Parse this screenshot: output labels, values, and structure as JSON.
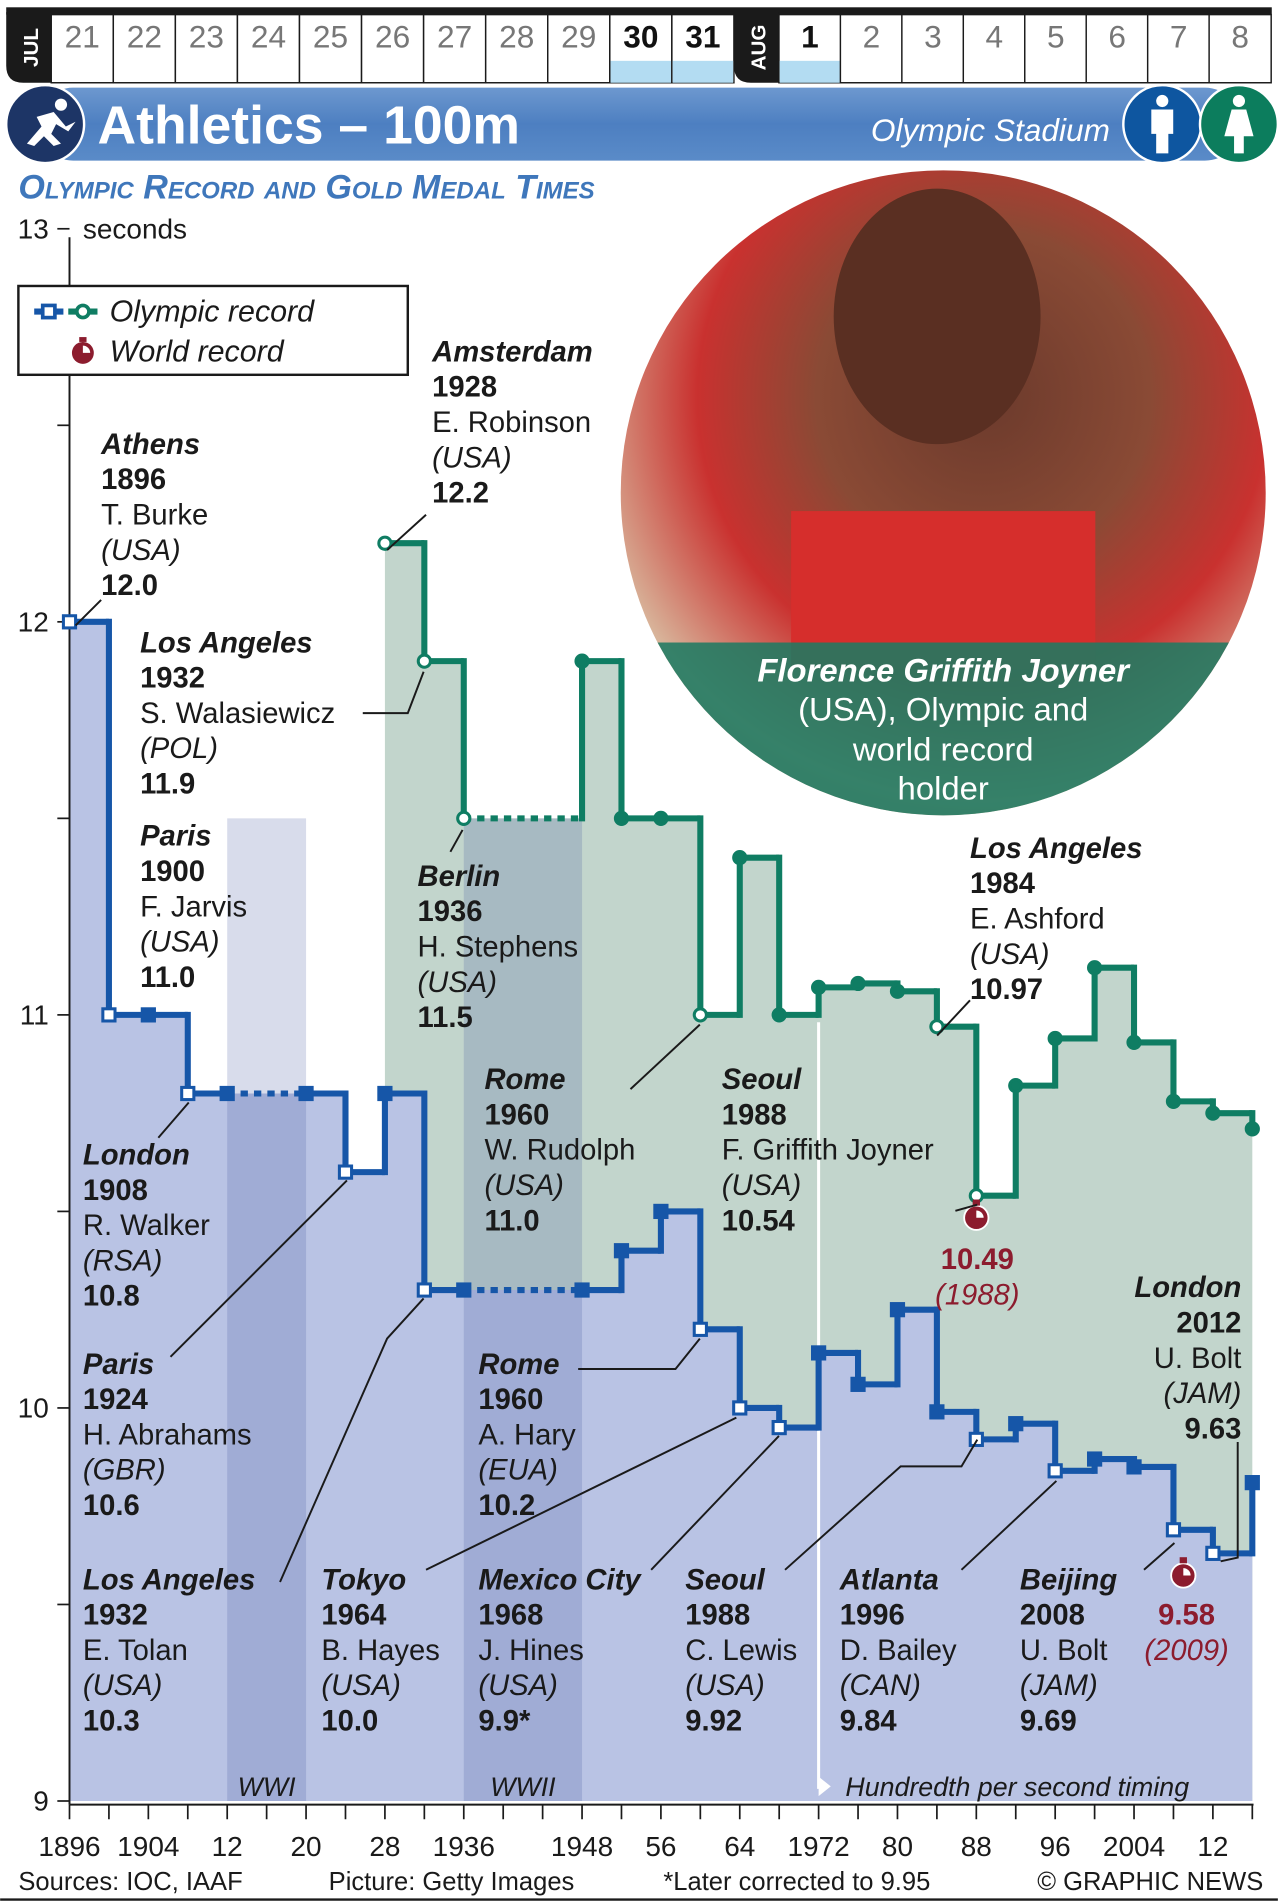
{
  "calendar": {
    "month1": "JUL",
    "month1_days": [
      "21",
      "22",
      "23",
      "24",
      "25",
      "26",
      "27",
      "28",
      "29",
      "30",
      "31"
    ],
    "month2": "AUG",
    "month2_days": [
      "1",
      "2",
      "3",
      "4",
      "5",
      "6",
      "7",
      "8"
    ],
    "highlighted_days": [
      "30",
      "31",
      "1"
    ],
    "highlight_color": "#b3dcf2"
  },
  "header": {
    "title": "Athletics – 100m",
    "venue": "Olympic Stadium",
    "sport_icon": "sprinter-icon",
    "men_icon": "man-icon",
    "women_icon": "woman-icon"
  },
  "subtitle": "Olympic Record and Gold Medal Times",
  "legend": {
    "olympic_record": "Olympic record",
    "world_record": "World record"
  },
  "photo": {
    "caption_name": "Florence Griffith Joyner",
    "caption_lines": [
      "(USA), Olympic and",
      "world record",
      "holder"
    ]
  },
  "bands": {
    "wwi": "WWI",
    "wwii": "WWII",
    "timing": "Hundredth per second timing"
  },
  "footer": {
    "sources": "Sources: IOC, IAAF",
    "picture": "Picture: Getty Images",
    "note": "*Later corrected to 9.95",
    "credit": "© GRAPHIC NEWS"
  },
  "chart_data": {
    "type": "line",
    "step": true,
    "ylabel": "seconds",
    "ylim": [
      9,
      13
    ],
    "yticks": [
      "13",
      "12",
      "11",
      "10",
      "9"
    ],
    "xlim": [
      1896,
      2016
    ],
    "xtick_labels": [
      "1896",
      "1904",
      "12",
      "20",
      "28",
      "1936",
      "1948",
      "56",
      "64",
      "1972",
      "80",
      "88",
      "96",
      "2004",
      "12"
    ],
    "colors": {
      "men_line": "#1656a8",
      "men_fill": "#b9c3e4",
      "women_line": "#0f7d63",
      "women_fill": "#c2d5cc",
      "world_record": "#8c1c2e"
    },
    "series": [
      {
        "key": "men",
        "x": [
          1896,
          1900,
          1904,
          1908,
          1912,
          1920,
          1924,
          1928,
          1932,
          1936,
          1948,
          1952,
          1956,
          1960,
          1964,
          1968,
          1972,
          1976,
          1980,
          1984,
          1988,
          1992,
          1996,
          2000,
          2004,
          2008,
          2012,
          2016
        ],
        "y": [
          12.0,
          11.0,
          11.0,
          10.8,
          10.8,
          10.8,
          10.6,
          10.8,
          10.3,
          10.3,
          10.3,
          10.4,
          10.5,
          10.2,
          10.0,
          9.95,
          10.14,
          10.06,
          10.25,
          9.99,
          9.92,
          9.96,
          9.84,
          9.87,
          9.85,
          9.69,
          9.63,
          9.81
        ],
        "olympic_record": [
          1896,
          1900,
          1908,
          1924,
          1932,
          1960,
          1964,
          1968,
          1988,
          1996,
          2008,
          2012
        ]
      },
      {
        "key": "women",
        "x": [
          1928,
          1932,
          1936,
          1948,
          1952,
          1956,
          1960,
          1964,
          1968,
          1972,
          1976,
          1980,
          1984,
          1988,
          1992,
          1996,
          2000,
          2004,
          2008,
          2012,
          2016
        ],
        "y": [
          12.2,
          11.9,
          11.5,
          11.9,
          11.5,
          11.5,
          11.0,
          11.4,
          11.0,
          11.07,
          11.08,
          11.06,
          10.97,
          10.54,
          10.82,
          10.94,
          11.12,
          10.93,
          10.78,
          10.75,
          10.71
        ],
        "olympic_record": [
          1928,
          1932,
          1936,
          1960,
          1984,
          1988
        ]
      }
    ],
    "world_records": [
      {
        "x": 1988,
        "y": 10.49,
        "label": "10.49",
        "year": "(1988)"
      },
      {
        "x": 2009,
        "y": 9.58,
        "label": "9.58",
        "year": "(2009)"
      }
    ],
    "shaded_periods": [
      {
        "label": "WWI",
        "from": 1912,
        "to": 1920
      },
      {
        "label": "WWII",
        "from": 1936,
        "to": 1948
      }
    ],
    "timing_change_year": 1972,
    "annotations": [
      {
        "city": "Athens",
        "year": "1896",
        "name": "T. Burke",
        "country": "(USA)",
        "time": "12.0"
      },
      {
        "city": "Amsterdam",
        "year": "1928",
        "name": "E. Robinson",
        "country": "(USA)",
        "time": "12.2"
      },
      {
        "city": "Los Angeles",
        "year": "1932",
        "name": "S. Walasiewicz",
        "country": "(POL)",
        "time": "11.9"
      },
      {
        "city": "Paris",
        "year": "1900",
        "name": "F. Jarvis",
        "country": "(USA)",
        "time": "11.0"
      },
      {
        "city": "Berlin",
        "year": "1936",
        "name": "H. Stephens",
        "country": "(USA)",
        "time": "11.5"
      },
      {
        "city": "London",
        "year": "1908",
        "name": "R. Walker",
        "country": "(RSA)",
        "time": "10.8"
      },
      {
        "city": "Rome",
        "year": "1960",
        "name": "W. Rudolph",
        "country": "(USA)",
        "time": "11.0"
      },
      {
        "city": "Seoul",
        "year": "1988",
        "name": "F. Griffith Joyner",
        "country": "(USA)",
        "time": "10.54"
      },
      {
        "city": "Los Angeles",
        "year": "1984",
        "name": "E. Ashford",
        "country": "(USA)",
        "time": "10.97"
      },
      {
        "city": "Paris",
        "year": "1924",
        "name": "H. Abrahams",
        "country": "(GBR)",
        "time": "10.6"
      },
      {
        "city": "Rome",
        "year": "1960",
        "name": "A. Hary",
        "country": "(EUA)",
        "time": "10.2"
      },
      {
        "city": "London",
        "year": "2012",
        "name": "U. Bolt",
        "country": "(JAM)",
        "time": "9.63"
      },
      {
        "city": "Los Angeles",
        "year": "1932",
        "name": "E. Tolan",
        "country": "(USA)",
        "time": "10.3"
      },
      {
        "city": "Tokyo",
        "year": "1964",
        "name": "B. Hayes",
        "country": "(USA)",
        "time": "10.0"
      },
      {
        "city": "Mexico City",
        "year": "1968",
        "name": "J. Hines",
        "country": "(USA)",
        "time": "9.9*"
      },
      {
        "city": "Seoul",
        "year": "1988",
        "name": "C. Lewis",
        "country": "(USA)",
        "time": "9.92"
      },
      {
        "city": "Atlanta",
        "year": "1996",
        "name": "D. Bailey",
        "country": "(CAN)",
        "time": "9.84"
      },
      {
        "city": "Beijing",
        "year": "2008",
        "name": "U. Bolt",
        "country": "(JAM)",
        "time": "9.69"
      }
    ]
  }
}
